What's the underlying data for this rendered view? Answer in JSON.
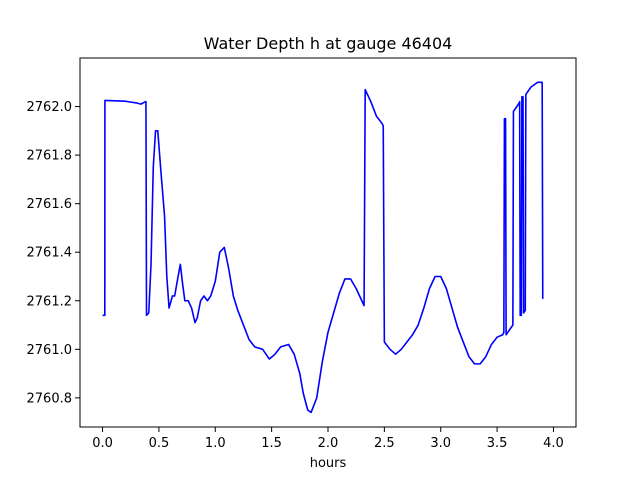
{
  "chart_data": {
    "type": "line",
    "title": "Water Depth h at gauge 46404",
    "xlabel": "hours",
    "ylabel": "",
    "xlim": [
      -0.2,
      4.2
    ],
    "ylim": [
      2760.68,
      2762.2
    ],
    "xticks": [
      0.0,
      0.5,
      1.0,
      1.5,
      2.0,
      2.5,
      3.0,
      3.5,
      4.0
    ],
    "xtick_labels": [
      "0.0",
      "0.5",
      "1.0",
      "1.5",
      "2.0",
      "2.5",
      "3.0",
      "3.5",
      "4.0"
    ],
    "yticks": [
      2760.8,
      2761.0,
      2761.2,
      2761.4,
      2761.6,
      2761.8,
      2762.0
    ],
    "ytick_labels": [
      "2760.8",
      "2761.0",
      "2761.2",
      "2761.4",
      "2761.6",
      "2761.8",
      "2762.0"
    ],
    "grid": false,
    "color": "#0000ff",
    "series": [
      {
        "points": [
          [
            0.0,
            2761.14
          ],
          [
            0.02,
            2761.14
          ],
          [
            0.021,
            2762.025
          ],
          [
            0.2,
            2762.022
          ],
          [
            0.3,
            2762.015
          ],
          [
            0.34,
            2762.01
          ],
          [
            0.38,
            2762.02
          ],
          [
            0.385,
            2762.02
          ],
          [
            0.39,
            2761.14
          ],
          [
            0.41,
            2761.15
          ],
          [
            0.43,
            2761.35
          ],
          [
            0.45,
            2761.75
          ],
          [
            0.47,
            2761.9
          ],
          [
            0.49,
            2761.9
          ],
          [
            0.52,
            2761.72
          ],
          [
            0.55,
            2761.55
          ],
          [
            0.57,
            2761.3
          ],
          [
            0.59,
            2761.17
          ],
          [
            0.62,
            2761.22
          ],
          [
            0.64,
            2761.22
          ],
          [
            0.67,
            2761.3
          ],
          [
            0.69,
            2761.35
          ],
          [
            0.71,
            2761.27
          ],
          [
            0.73,
            2761.2
          ],
          [
            0.76,
            2761.2
          ],
          [
            0.79,
            2761.17
          ],
          [
            0.82,
            2761.11
          ],
          [
            0.84,
            2761.13
          ],
          [
            0.87,
            2761.2
          ],
          [
            0.9,
            2761.22
          ],
          [
            0.93,
            2761.2
          ],
          [
            0.96,
            2761.22
          ],
          [
            1.0,
            2761.28
          ],
          [
            1.04,
            2761.4
          ],
          [
            1.08,
            2761.42
          ],
          [
            1.12,
            2761.33
          ],
          [
            1.16,
            2761.22
          ],
          [
            1.2,
            2761.16
          ],
          [
            1.25,
            2761.1
          ],
          [
            1.3,
            2761.04
          ],
          [
            1.35,
            2761.01
          ],
          [
            1.42,
            2761.0
          ],
          [
            1.48,
            2760.96
          ],
          [
            1.53,
            2760.98
          ],
          [
            1.58,
            2761.01
          ],
          [
            1.65,
            2761.02
          ],
          [
            1.7,
            2760.98
          ],
          [
            1.75,
            2760.9
          ],
          [
            1.78,
            2760.82
          ],
          [
            1.82,
            2760.75
          ],
          [
            1.85,
            2760.74
          ],
          [
            1.9,
            2760.8
          ],
          [
            1.95,
            2760.95
          ],
          [
            2.0,
            2761.07
          ],
          [
            2.05,
            2761.15
          ],
          [
            2.1,
            2761.23
          ],
          [
            2.15,
            2761.29
          ],
          [
            2.2,
            2761.29
          ],
          [
            2.25,
            2761.25
          ],
          [
            2.3,
            2761.2
          ],
          [
            2.32,
            2761.18
          ],
          [
            2.33,
            2762.07
          ],
          [
            2.38,
            2762.02
          ],
          [
            2.43,
            2761.96
          ],
          [
            2.48,
            2761.93
          ],
          [
            2.49,
            2761.92
          ],
          [
            2.5,
            2761.03
          ],
          [
            2.55,
            2761.0
          ],
          [
            2.6,
            2760.98
          ],
          [
            2.65,
            2761.0
          ],
          [
            2.7,
            2761.03
          ],
          [
            2.75,
            2761.06
          ],
          [
            2.8,
            2761.1
          ],
          [
            2.85,
            2761.17
          ],
          [
            2.9,
            2761.25
          ],
          [
            2.95,
            2761.3
          ],
          [
            3.0,
            2761.3
          ],
          [
            3.05,
            2761.25
          ],
          [
            3.1,
            2761.17
          ],
          [
            3.15,
            2761.09
          ],
          [
            3.2,
            2761.03
          ],
          [
            3.25,
            2760.97
          ],
          [
            3.3,
            2760.94
          ],
          [
            3.35,
            2760.94
          ],
          [
            3.4,
            2760.97
          ],
          [
            3.45,
            2761.02
          ],
          [
            3.5,
            2761.05
          ],
          [
            3.55,
            2761.06
          ],
          [
            3.56,
            2761.07
          ],
          [
            3.565,
            2761.95
          ],
          [
            3.575,
            2761.95
          ],
          [
            3.58,
            2761.06
          ],
          [
            3.61,
            2761.08
          ],
          [
            3.64,
            2761.1
          ],
          [
            3.645,
            2761.98
          ],
          [
            3.69,
            2762.01
          ],
          [
            3.7,
            2762.02
          ],
          [
            3.705,
            2761.14
          ],
          [
            3.715,
            2761.14
          ],
          [
            3.72,
            2762.04
          ],
          [
            3.73,
            2762.04
          ],
          [
            3.735,
            2761.15
          ],
          [
            3.75,
            2761.16
          ],
          [
            3.755,
            2762.05
          ],
          [
            3.8,
            2762.08
          ],
          [
            3.86,
            2762.1
          ],
          [
            3.9,
            2762.1
          ],
          [
            3.905,
            2761.21
          ],
          [
            3.91,
            2761.21
          ]
        ]
      }
    ]
  }
}
